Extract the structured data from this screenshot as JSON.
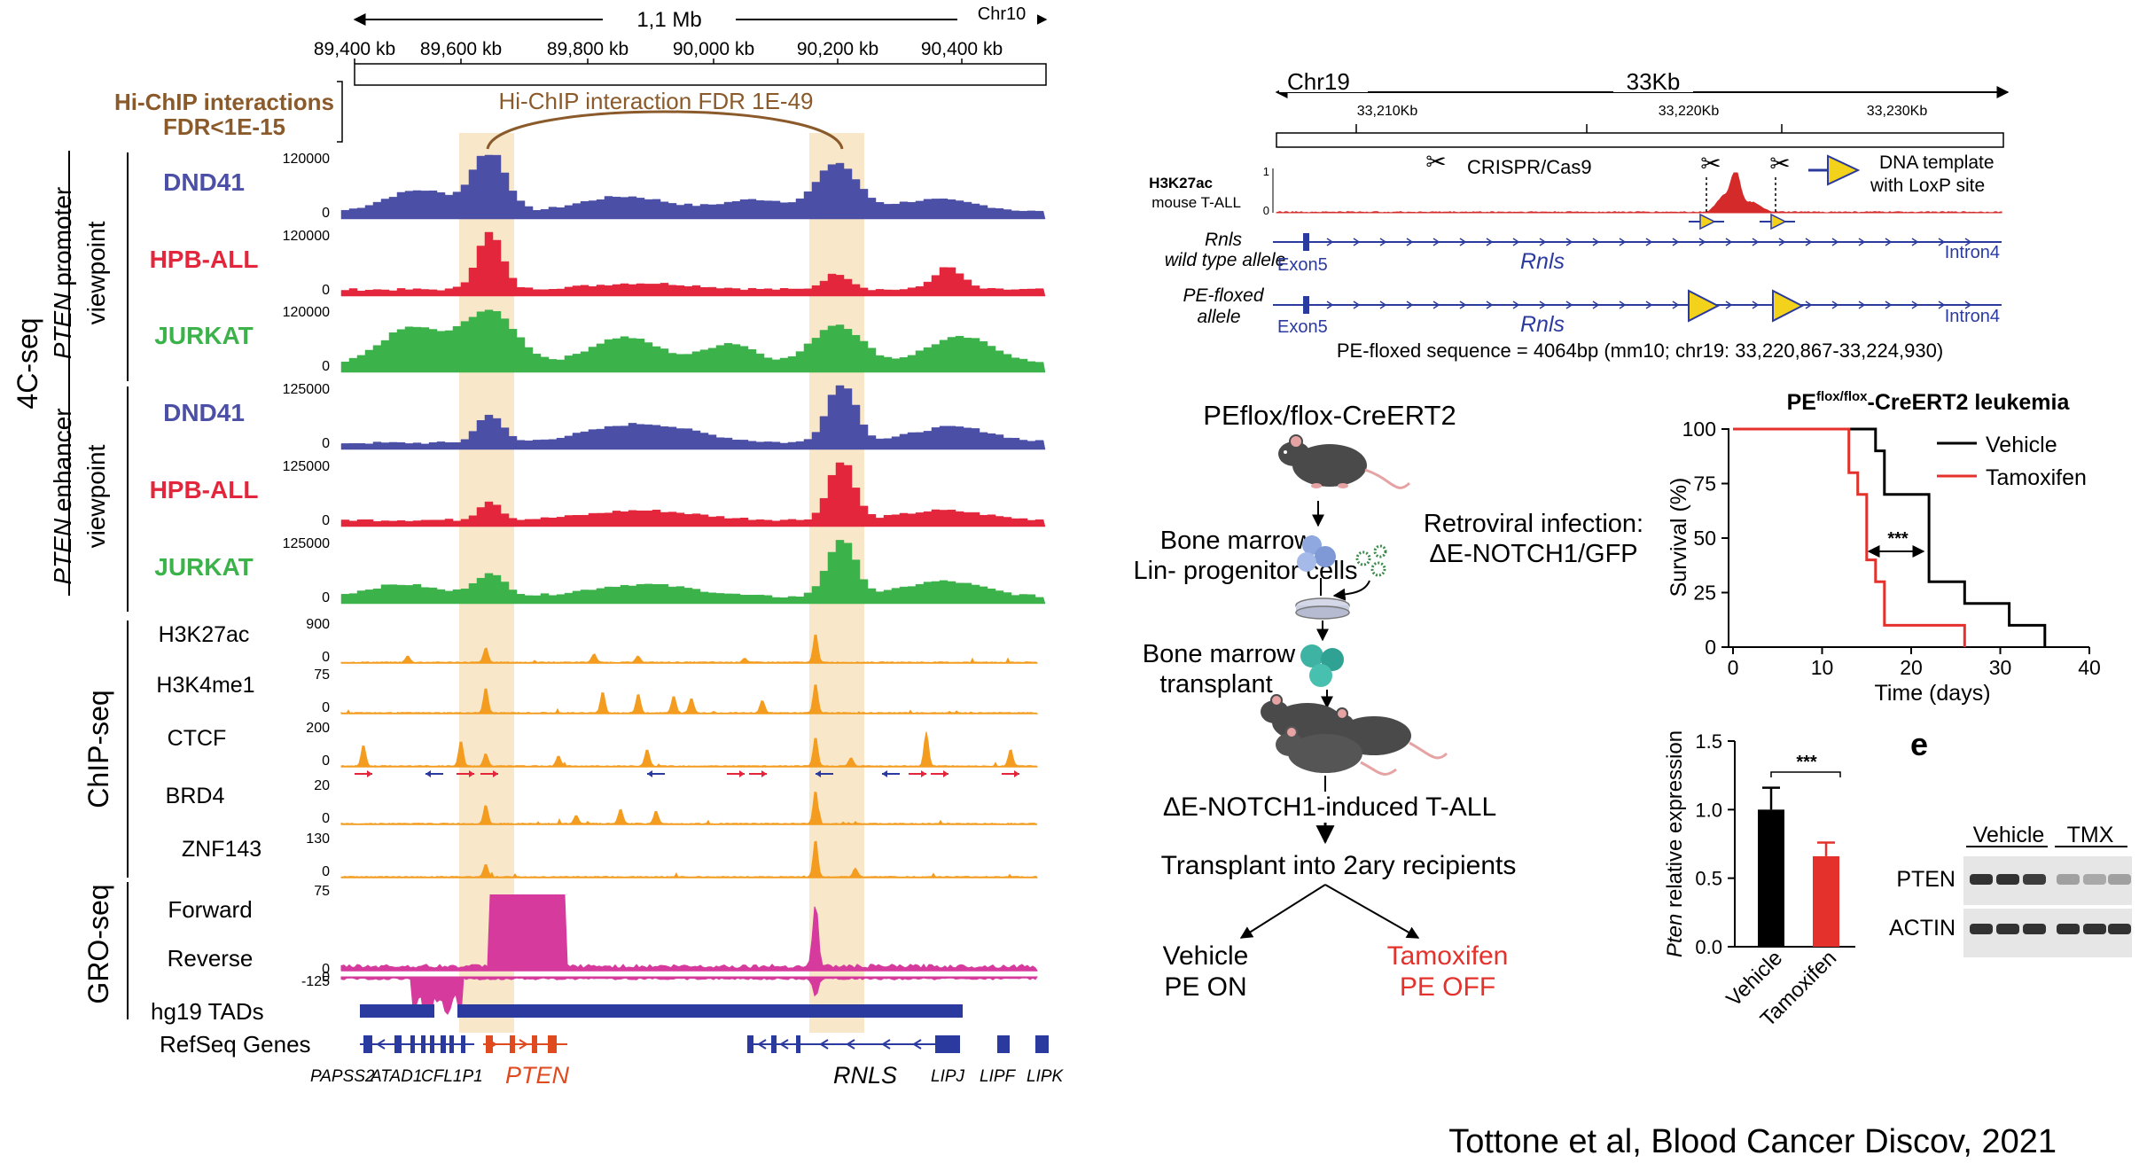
{
  "left": {
    "scale": {
      "span": "1,1 Mb",
      "chrom": "Chr10",
      "ticks": [
        "89,400 kb",
        "89,600 kb",
        "89,800 kb",
        "90,000 kb",
        "90,200 kb",
        "90,400 kb"
      ]
    },
    "hichip": {
      "label_line1": "Hi-ChIP interactions",
      "label_line2": "FDR<1E-15",
      "arc_label": "Hi-ChIP interaction FDR 1E-49"
    },
    "group_4c": "4C-seq",
    "promoter_viewpoint": {
      "italic": "PTEN",
      "rest": " promoter",
      "line2": "viewpoint"
    },
    "enhancer_viewpoint": {
      "italic": "PTEN",
      "rest": " enhancer",
      "line2": "viewpoint"
    },
    "tracks_4c": [
      {
        "name": "DND41",
        "max": "120000",
        "min": "0",
        "color": "#4b4fa6"
      },
      {
        "name": "HPB-ALL",
        "max": "120000",
        "min": "0",
        "color": "#e3263b"
      },
      {
        "name": "JURKAT",
        "max": "120000",
        "min": "0",
        "color": "#3cb34a"
      },
      {
        "name": "DND41",
        "max": "125000",
        "min": "0",
        "color": "#4b4fa6"
      },
      {
        "name": "HPB-ALL",
        "max": "125000",
        "min": "0",
        "color": "#e3263b"
      },
      {
        "name": "JURKAT",
        "max": "125000",
        "min": "0",
        "color": "#3cb34a"
      }
    ],
    "group_chip": "ChIP-seq",
    "tracks_chip": [
      {
        "name": "H3K27ac",
        "max": "900",
        "min": "0"
      },
      {
        "name": "H3K4me1",
        "max": "75",
        "min": "0"
      },
      {
        "name": "CTCF",
        "max": "200",
        "min": "0"
      },
      {
        "name": "BRD4",
        "max": "20",
        "min": "0"
      },
      {
        "name": "ZNF143",
        "max": "130",
        "min": "0"
      }
    ],
    "group_gro": "GRO-seq",
    "gro_forward": {
      "name": "Forward",
      "max": "75",
      "min": "0"
    },
    "gro_reverse": {
      "name": "Reverse",
      "max": "0",
      "min": "-125"
    },
    "tads_label": "hg19 TADs",
    "genes_label": "RefSeq Genes",
    "genes": [
      "PAPSS2",
      "ATAD1",
      "CFL1P1",
      "PTEN",
      "RNLS",
      "LIPJ",
      "LIPF",
      "LIPK"
    ],
    "colors": {
      "orange": "#f39c1f",
      "magenta": "#d63a9c",
      "highlight": "#f7e3c0",
      "brown": "#8b5a2b",
      "navy": "#2b3a9e",
      "gene_red": "#e04a1f"
    }
  },
  "locus": {
    "chrom": "Chr19",
    "span": "33Kb",
    "ticks": [
      "33,210Kb",
      "33,220Kb",
      "33,230Kb"
    ],
    "track_mark": "H3K27ac",
    "track_sub": "mouse T-ALL",
    "track_max": "1",
    "track_min": "0",
    "crispr": "CRISPR/Cas9",
    "template_line1": "DNA template",
    "template_line2": "with LoxP site",
    "wt_label1": "Rnls",
    "wt_label2": "wild type allele",
    "pe_label1": "PE-floxed",
    "pe_label2": "allele",
    "exon": "Exon5",
    "gene": "Rnls",
    "intron": "Intron4",
    "sequence": "PE-floxed sequence = 4064bp (mm10; chr19: 33,220,867-33,224,930)"
  },
  "scheme": {
    "title": "PEflox/flox-CreERT2",
    "bm1_line1": "Bone marrow",
    "bm1_line2": "Lin- progenitor cells",
    "infection_line1": "Retroviral infection:",
    "infection_line2": "ΔE-NOTCH1/GFP",
    "transplant_line1": "Bone marrow",
    "transplant_line2": "transplant",
    "induced": "ΔE-NOTCH1-induced T-ALL",
    "secondary": "Transplant into 2ary recipients",
    "vehicle_line1": "Vehicle",
    "vehicle_line2": "PE ON",
    "tamox_line1": "Tamoxifen",
    "tamox_line2": "PE OFF"
  },
  "chart_data": [
    {
      "type": "line",
      "title_main": "PE",
      "title_sup": "flox/flox",
      "title_rest": "-CreERT2 leukemia",
      "xlabel": "Time (days)",
      "ylabel": "Survival (%)",
      "xlim": [
        0,
        40
      ],
      "ylim": [
        0,
        100
      ],
      "xticks": [
        "0",
        "10",
        "20",
        "30",
        "40"
      ],
      "yticks": [
        "0",
        "25",
        "50",
        "75",
        "100"
      ],
      "significance": "***",
      "series": [
        {
          "name": "Vehicle",
          "color": "#000000",
          "x": [
            0,
            16,
            16,
            17,
            17,
            22,
            22,
            26,
            26,
            31,
            31,
            33,
            33,
            35,
            35
          ],
          "y": [
            100,
            100,
            90,
            90,
            70,
            70,
            30,
            30,
            20,
            20,
            10,
            10,
            10,
            10,
            0
          ]
        },
        {
          "name": "Tamoxifen",
          "color": "#e5312b",
          "x": [
            0,
            13,
            13,
            14,
            14,
            15,
            15,
            16,
            16,
            17,
            17,
            26,
            26
          ],
          "y": [
            100,
            100,
            80,
            80,
            70,
            70,
            40,
            40,
            30,
            30,
            10,
            10,
            0
          ]
        }
      ]
    },
    {
      "type": "bar",
      "categories": [
        "Vehicle",
        "Tamoxifen"
      ],
      "values": [
        1.0,
        0.66
      ],
      "errors": [
        0.16,
        0.1
      ],
      "colors": [
        "#000000",
        "#e5312b"
      ],
      "ylabel_italic": "Pten",
      "ylabel_rest": " relative expression",
      "ylim": [
        0,
        1.5
      ],
      "yticks": [
        "0.0",
        "0.5",
        "1.0",
        "1.5"
      ],
      "significance": "***"
    }
  ],
  "western": {
    "panel_letter": "e",
    "group1": "Vehicle",
    "group2": "TMX",
    "rows": [
      "PTEN",
      "ACTIN"
    ]
  },
  "citation": "Tottone et al, Blood Cancer Discov, 2021"
}
